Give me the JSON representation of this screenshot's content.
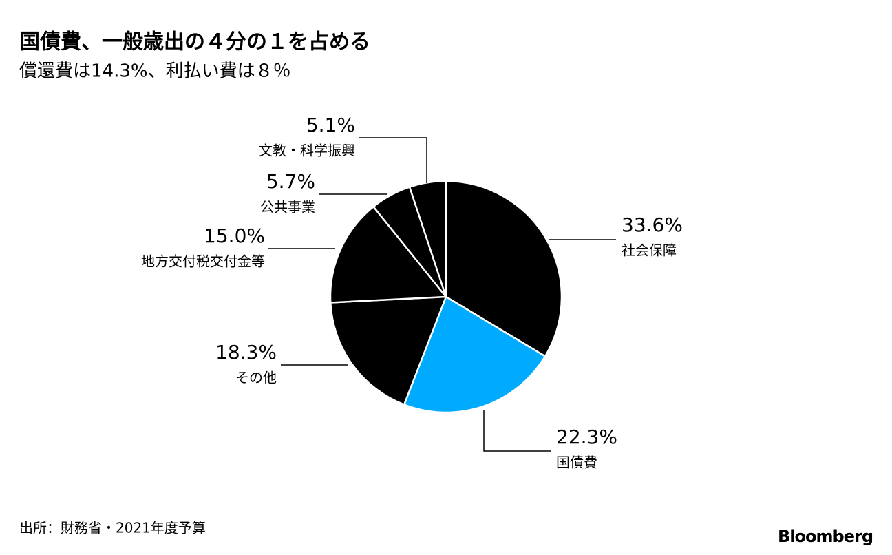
{
  "chart_data": {
    "type": "pie",
    "title": "国債費、一般歳出の４分の１を占める",
    "subtitle": "償還費は14.3%、利払い費は８％",
    "categories": [
      "社会保障",
      "国債費",
      "その他",
      "地方交付税交付金等",
      "公共事業",
      "文教・科学振興"
    ],
    "values": [
      33.6,
      22.3,
      18.3,
      15.0,
      5.7,
      5.1
    ],
    "value_labels": [
      "33.6%",
      "22.3%",
      "18.3%",
      "15.0%",
      "5.7%",
      "5.1%"
    ],
    "colors": [
      "#000000",
      "#00aaff",
      "#000000",
      "#000000",
      "#000000",
      "#000000"
    ],
    "source": "出所：財務省・2021年度予算",
    "logo": "Bloomberg"
  }
}
